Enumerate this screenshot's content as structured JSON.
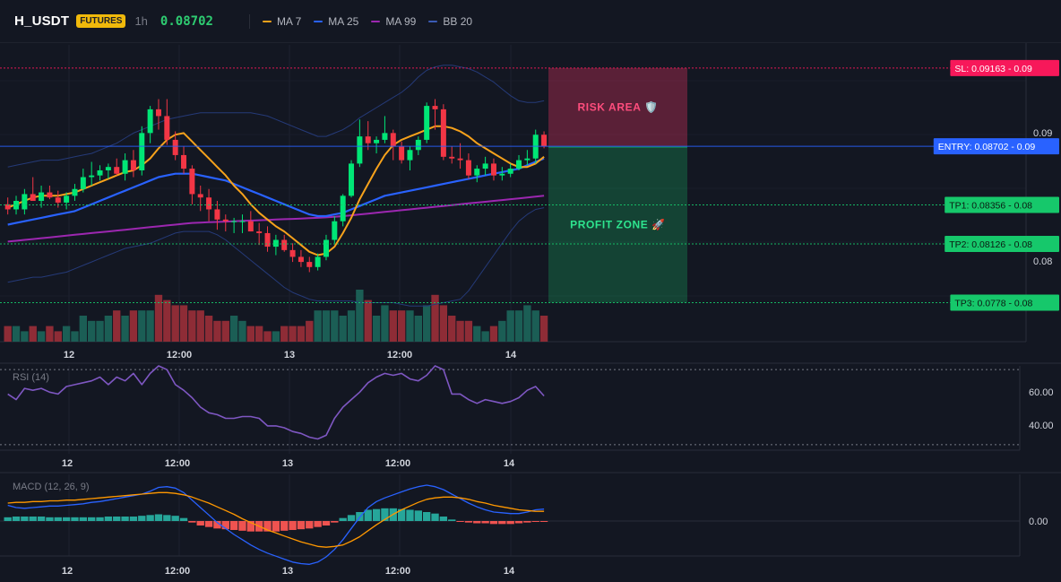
{
  "header": {
    "symbol": "H_USDT",
    "badge": "FUTURES",
    "timeframe": "1h",
    "price": "0.08702",
    "legend": [
      {
        "label": "MA 7",
        "color": "#f7a21b"
      },
      {
        "label": "MA 25",
        "color": "#2962ff"
      },
      {
        "label": "MA 99",
        "color": "#9c27b0"
      },
      {
        "label": "BB 20",
        "color": "#1e3a8a"
      }
    ]
  },
  "colors": {
    "up": "#00e676",
    "down": "#f23645",
    "vol_up": "#1b5e55",
    "vol_down": "#8e2c36",
    "risk": "#f7185a",
    "entry": "#2962ff",
    "tp": "#16c86b"
  },
  "chart_data": [
    {
      "type": "candlestick",
      "name": "price",
      "x_ticks": [
        "12",
        "12:00",
        "13",
        "12:00",
        "14"
      ],
      "y_ticks": [
        "0.09",
        "0.08"
      ],
      "candles": [
        [
          0.0836,
          0.084,
          0.083,
          0.0833
        ],
        [
          0.0833,
          0.0841,
          0.083,
          0.0838
        ],
        [
          0.0833,
          0.0845,
          0.083,
          0.0842
        ],
        [
          0.0842,
          0.0852,
          0.0838,
          0.0838
        ],
        [
          0.0838,
          0.0847,
          0.0834,
          0.0843
        ],
        [
          0.0843,
          0.0847,
          0.0839,
          0.084
        ],
        [
          0.084,
          0.0844,
          0.0834,
          0.0837
        ],
        [
          0.0837,
          0.0843,
          0.0833,
          0.0841
        ],
        [
          0.0841,
          0.0848,
          0.0838,
          0.0845
        ],
        [
          0.0845,
          0.0857,
          0.0843,
          0.0852
        ],
        [
          0.0852,
          0.0861,
          0.0847,
          0.0853
        ],
        [
          0.0853,
          0.0859,
          0.085,
          0.0856
        ],
        [
          0.0856,
          0.086,
          0.0851,
          0.0858
        ],
        [
          0.0858,
          0.0863,
          0.0853,
          0.0854
        ],
        [
          0.0854,
          0.0866,
          0.085,
          0.0862
        ],
        [
          0.0862,
          0.0868,
          0.0852,
          0.0856
        ],
        [
          0.0856,
          0.0882,
          0.0853,
          0.0878
        ],
        [
          0.0878,
          0.0894,
          0.0872,
          0.0892
        ],
        [
          0.0892,
          0.0898,
          0.088,
          0.0888
        ],
        [
          0.0888,
          0.0898,
          0.0871,
          0.0874
        ],
        [
          0.0874,
          0.0879,
          0.0862,
          0.0865
        ],
        [
          0.0865,
          0.087,
          0.0854,
          0.0857
        ],
        [
          0.0857,
          0.0859,
          0.0836,
          0.0842
        ],
        [
          0.0842,
          0.0847,
          0.0832,
          0.084
        ],
        [
          0.084,
          0.0845,
          0.0826,
          0.0833
        ],
        [
          0.0833,
          0.0838,
          0.0821,
          0.0827
        ],
        [
          0.0827,
          0.083,
          0.082,
          0.0826
        ],
        [
          0.0826,
          0.0828,
          0.0819,
          0.0826
        ],
        [
          0.0826,
          0.083,
          0.0819,
          0.0826
        ],
        [
          0.0826,
          0.0832,
          0.082,
          0.082
        ],
        [
          0.082,
          0.0825,
          0.0812,
          0.0819
        ],
        [
          0.0819,
          0.0823,
          0.0808,
          0.0811
        ],
        [
          0.0811,
          0.0818,
          0.0806,
          0.0815
        ],
        [
          0.0815,
          0.0818,
          0.0808,
          0.0809
        ],
        [
          0.0809,
          0.0813,
          0.0802,
          0.0805
        ],
        [
          0.0805,
          0.0809,
          0.0799,
          0.0802
        ],
        [
          0.0802,
          0.0805,
          0.0796,
          0.0799
        ],
        [
          0.0799,
          0.0807,
          0.0797,
          0.0805
        ],
        [
          0.0805,
          0.0818,
          0.0803,
          0.0815
        ],
        [
          0.0815,
          0.0829,
          0.0813,
          0.0826
        ],
        [
          0.0826,
          0.0842,
          0.0823,
          0.0841
        ],
        [
          0.0841,
          0.0862,
          0.084,
          0.086
        ],
        [
          0.086,
          0.0886,
          0.0858,
          0.0876
        ],
        [
          0.0876,
          0.0885,
          0.0868,
          0.0872
        ],
        [
          0.0872,
          0.0876,
          0.0866,
          0.0874
        ],
        [
          0.0874,
          0.0888,
          0.0872,
          0.0878
        ],
        [
          0.0878,
          0.088,
          0.0862,
          0.087
        ],
        [
          0.087,
          0.0873,
          0.086,
          0.0862
        ],
        [
          0.0862,
          0.087,
          0.0856,
          0.0868
        ],
        [
          0.0868,
          0.0876,
          0.0865,
          0.0874
        ],
        [
          0.0874,
          0.0896,
          0.0872,
          0.0894
        ],
        [
          0.0894,
          0.0898,
          0.088,
          0.0892
        ],
        [
          0.0892,
          0.0895,
          0.0862,
          0.0864
        ],
        [
          0.0864,
          0.087,
          0.086,
          0.0863
        ],
        [
          0.0863,
          0.0872,
          0.0857,
          0.0862
        ],
        [
          0.0862,
          0.0866,
          0.0851,
          0.0853
        ],
        [
          0.0853,
          0.0859,
          0.0849,
          0.0857
        ],
        [
          0.0857,
          0.0864,
          0.0853,
          0.086
        ],
        [
          0.086,
          0.0863,
          0.085,
          0.0853
        ],
        [
          0.0853,
          0.0858,
          0.085,
          0.0854
        ],
        [
          0.0854,
          0.086,
          0.0852,
          0.0857
        ],
        [
          0.0857,
          0.0865,
          0.0856,
          0.0862
        ],
        [
          0.0862,
          0.0868,
          0.0859,
          0.0863
        ],
        [
          0.0863,
          0.088,
          0.086,
          0.0877
        ],
        [
          0.0877,
          0.0879,
          0.0869,
          0.08702
        ]
      ],
      "volume": [
        3,
        3,
        2,
        3,
        2,
        3,
        2,
        3,
        2,
        5,
        4,
        4,
        5,
        6,
        5,
        6,
        6,
        6,
        9,
        8,
        7,
        7,
        6,
        6,
        5,
        4,
        4,
        5,
        4,
        3,
        3,
        2,
        2,
        3,
        3,
        3,
        4,
        6,
        6,
        6,
        5,
        6,
        10,
        8,
        5,
        7,
        6,
        6,
        6,
        5,
        7,
        9,
        7,
        5,
        4,
        4,
        3,
        2,
        3,
        4,
        6,
        6,
        7,
        6,
        5
      ],
      "ma7": [
        0.0834,
        0.0836,
        0.0838,
        0.084,
        0.0841,
        0.0841,
        0.0841,
        0.0842,
        0.0843,
        0.0845,
        0.0847,
        0.0849,
        0.0851,
        0.0853,
        0.0855,
        0.0856,
        0.0859,
        0.0863,
        0.0869,
        0.0874,
        0.0877,
        0.0878,
        0.0873,
        0.0868,
        0.0863,
        0.0858,
        0.0853,
        0.0847,
        0.0842,
        0.0836,
        0.0831,
        0.0827,
        0.0823,
        0.082,
        0.0816,
        0.0812,
        0.0808,
        0.0806,
        0.0807,
        0.0811,
        0.0819,
        0.0828,
        0.0839,
        0.0848,
        0.0857,
        0.0865,
        0.0871,
        0.0874,
        0.0876,
        0.0878,
        0.088,
        0.0882,
        0.0882,
        0.0881,
        0.0879,
        0.0876,
        0.0872,
        0.0869,
        0.0866,
        0.0863,
        0.086,
        0.0858,
        0.0858,
        0.086,
        0.0864
      ],
      "ma25": [
        0.0824,
        0.0825,
        0.0826,
        0.0827,
        0.0828,
        0.0829,
        0.083,
        0.0831,
        0.0832,
        0.0834,
        0.0836,
        0.0838,
        0.084,
        0.0842,
        0.0844,
        0.0846,
        0.0848,
        0.085,
        0.0852,
        0.0853,
        0.0854,
        0.0854,
        0.0854,
        0.0853,
        0.0852,
        0.0851,
        0.085,
        0.0848,
        0.0846,
        0.0844,
        0.0842,
        0.084,
        0.0838,
        0.0836,
        0.0834,
        0.0832,
        0.083,
        0.0829,
        0.0829,
        0.083,
        0.0831,
        0.0833,
        0.0835,
        0.0837,
        0.0839,
        0.0841,
        0.0842,
        0.0843,
        0.0844,
        0.0845,
        0.0846,
        0.0847,
        0.0848,
        0.0849,
        0.085,
        0.0851,
        0.0852,
        0.0853,
        0.0854,
        0.0855,
        0.0856,
        0.0857,
        0.0859,
        0.0861,
        0.0863
      ],
      "ma99": [
        0.0814,
        0.08145,
        0.0815,
        0.08155,
        0.0816,
        0.08165,
        0.0817,
        0.08175,
        0.0818,
        0.08185,
        0.0819,
        0.08195,
        0.082,
        0.08205,
        0.0821,
        0.08215,
        0.0822,
        0.08225,
        0.0823,
        0.08235,
        0.0824,
        0.08245,
        0.0825,
        0.08252,
        0.08254,
        0.08256,
        0.08258,
        0.0826,
        0.08262,
        0.08264,
        0.08266,
        0.08268,
        0.0827,
        0.08272,
        0.08274,
        0.08276,
        0.08278,
        0.0828,
        0.08283,
        0.08286,
        0.0829,
        0.08295,
        0.083,
        0.08305,
        0.0831,
        0.08315,
        0.0832,
        0.08325,
        0.0833,
        0.08335,
        0.0834,
        0.08345,
        0.0835,
        0.08355,
        0.0836,
        0.08365,
        0.0837,
        0.08375,
        0.0838,
        0.08385,
        0.0839,
        0.08395,
        0.084,
        0.08405,
        0.0841
      ],
      "bb_upper": [
        0.0858,
        0.0859,
        0.086,
        0.0861,
        0.0862,
        0.0862,
        0.0862,
        0.0863,
        0.0864,
        0.0865,
        0.0866,
        0.0868,
        0.087,
        0.0872,
        0.0875,
        0.0878,
        0.088,
        0.0882,
        0.0884,
        0.0886,
        0.0887,
        0.0888,
        0.0889,
        0.089,
        0.089,
        0.089,
        0.089,
        0.089,
        0.089,
        0.089,
        0.0889,
        0.0888,
        0.0886,
        0.0884,
        0.0882,
        0.088,
        0.0878,
        0.0876,
        0.0876,
        0.0878,
        0.088,
        0.0883,
        0.0887,
        0.089,
        0.0893,
        0.0896,
        0.0899,
        0.0902,
        0.0906,
        0.0911,
        0.0915,
        0.0917,
        0.0918,
        0.0918,
        0.0917,
        0.0916,
        0.0914,
        0.0911,
        0.0908,
        0.0904,
        0.09,
        0.0897,
        0.0896,
        0.0896,
        0.0897
      ],
      "bb_lower": [
        0.079,
        0.0791,
        0.0792,
        0.0793,
        0.0793,
        0.0794,
        0.0795,
        0.0796,
        0.0798,
        0.08,
        0.0802,
        0.0804,
        0.0806,
        0.0808,
        0.081,
        0.0811,
        0.0812,
        0.0813,
        0.0815,
        0.0817,
        0.0819,
        0.082,
        0.082,
        0.082,
        0.082,
        0.0818,
        0.0815,
        0.0811,
        0.0807,
        0.0803,
        0.0799,
        0.0795,
        0.0791,
        0.0787,
        0.0784,
        0.0782,
        0.078,
        0.0779,
        0.0779,
        0.0779,
        0.0779,
        0.0779,
        0.0778,
        0.0778,
        0.0778,
        0.0778,
        0.0778,
        0.0777,
        0.0776,
        0.0776,
        0.0776,
        0.0777,
        0.0778,
        0.0779,
        0.078,
        0.0785,
        0.0792,
        0.0799,
        0.0806,
        0.0813,
        0.082,
        0.0826,
        0.083,
        0.0833,
        0.0834
      ]
    },
    {
      "type": "line",
      "name": "RSI",
      "label": "RSI (14)",
      "y_ticks": [
        "60.00",
        "40.00"
      ],
      "values": [
        57,
        54,
        60,
        59,
        60,
        58,
        57,
        61,
        62,
        63,
        64,
        66,
        62,
        66,
        64,
        68,
        62,
        68,
        72,
        70,
        62,
        59,
        55,
        50,
        47,
        46,
        44,
        44,
        45,
        45,
        44,
        40,
        40,
        39,
        37,
        36,
        34,
        33,
        35,
        44,
        50,
        54,
        58,
        63,
        66,
        68,
        67,
        68,
        65,
        64,
        67,
        72,
        70,
        57,
        57,
        54,
        52,
        54,
        53,
        52,
        53,
        55,
        59,
        61,
        56
      ],
      "guides": [
        70,
        30
      ]
    },
    {
      "type": "line",
      "name": "MACD",
      "label": "MACD (12, 26, 9)",
      "y_ticks": [
        "0.00"
      ],
      "macd": [
        0.00021,
        0.00018,
        0.00017,
        0.00018,
        0.00019,
        0.0002,
        0.0002,
        0.00021,
        0.00022,
        0.00023,
        0.00025,
        0.00026,
        0.00028,
        0.0003,
        0.00032,
        0.00034,
        0.00036,
        0.0004,
        0.00045,
        0.00046,
        0.00044,
        0.00038,
        0.00028,
        0.00018,
        8e-05,
        -2e-05,
        -0.0001,
        -0.00018,
        -0.00025,
        -0.00032,
        -0.00038,
        -0.00043,
        -0.00047,
        -0.00051,
        -0.00055,
        -0.00057,
        -0.00058,
        -0.00055,
        -0.00048,
        -0.00038,
        -0.00025,
        -0.0001,
        5e-05,
        0.00018,
        0.00026,
        0.00031,
        0.00035,
        0.00039,
        0.00043,
        0.00046,
        0.00048,
        0.00046,
        0.00042,
        0.00036,
        0.0003,
        0.00024,
        0.00019,
        0.00015,
        0.00012,
        0.00011,
        0.0001,
        0.0001,
        0.00012,
        0.00015,
        0.00016
      ],
      "signal": [
        0.00024,
        0.00025,
        0.00025,
        0.00026,
        0.00026,
        0.00027,
        0.00027,
        0.00028,
        0.00028,
        0.00029,
        0.0003,
        0.00031,
        0.00032,
        0.00033,
        0.00034,
        0.00035,
        0.00036,
        0.00037,
        0.00038,
        0.00038,
        0.00037,
        0.00035,
        0.00032,
        0.00028,
        0.00024,
        0.00019,
        0.00014,
        9e-05,
        3e-05,
        -2e-05,
        -7e-05,
        -0.00012,
        -0.00016,
        -0.0002,
        -0.00024,
        -0.00028,
        -0.00031,
        -0.00034,
        -0.00035,
        -0.00034,
        -0.00032,
        -0.00027,
        -0.00021,
        -0.00013,
        -5e-05,
        2e-05,
        9e-05,
        0.00015,
        0.0002,
        0.00025,
        0.00029,
        0.00031,
        0.00032,
        0.00032,
        0.00031,
        0.00029,
        0.00026,
        0.00024,
        0.00021,
        0.00019,
        0.00017,
        0.00015,
        0.00014,
        0.00013,
        0.00013
      ],
      "histogram": [
        5e-05,
        6e-05,
        6e-05,
        6e-05,
        6e-05,
        5e-05,
        5e-05,
        5e-05,
        5e-05,
        5e-05,
        5e-05,
        5e-05,
        6e-05,
        6e-05,
        6e-05,
        6e-05,
        7e-05,
        8e-05,
        9e-05,
        8e-05,
        7e-05,
        4e-05,
        -2e-05,
        -6e-05,
        -8e-05,
        -0.0001,
        -0.00011,
        -0.00012,
        -0.00013,
        -0.00014,
        -0.00014,
        -0.00014,
        -0.00014,
        -0.00013,
        -0.00012,
        -0.00011,
        -0.0001,
        -8e-05,
        -6e-05,
        -2e-05,
        4e-05,
        8e-05,
        0.00012,
        0.00015,
        0.00016,
        0.00017,
        0.00017,
        0.00016,
        0.00015,
        0.00014,
        0.00012,
        0.0001,
        6e-05,
        2e-05,
        -1e-05,
        -2e-05,
        -3e-05,
        -3e-05,
        -4e-05,
        -4e-05,
        -4e-05,
        -3e-05,
        -2e-05,
        -1e-05,
        -1e-05
      ]
    }
  ],
  "levels": {
    "sl": {
      "tag": "SL: 0.09163",
      "value": 0.09163,
      "short": "- 0.09"
    },
    "entry": {
      "tag": "ENTRY: 0.08702",
      "value": 0.08702,
      "short": "- 0.09"
    },
    "tp1": {
      "tag": "TP1: 0.08356",
      "value": 0.08356,
      "short": "- 0.08"
    },
    "tp2": {
      "tag": "TP2: 0.08126",
      "value": 0.08126,
      "short": "- 0.08"
    },
    "tp3": {
      "tag": "TP3: 0.0778",
      "value": 0.0778,
      "short": "- 0.08"
    }
  },
  "zones": {
    "risk": "RISK AREA 🛡️",
    "profit": "PROFIT ZONE 🚀"
  }
}
